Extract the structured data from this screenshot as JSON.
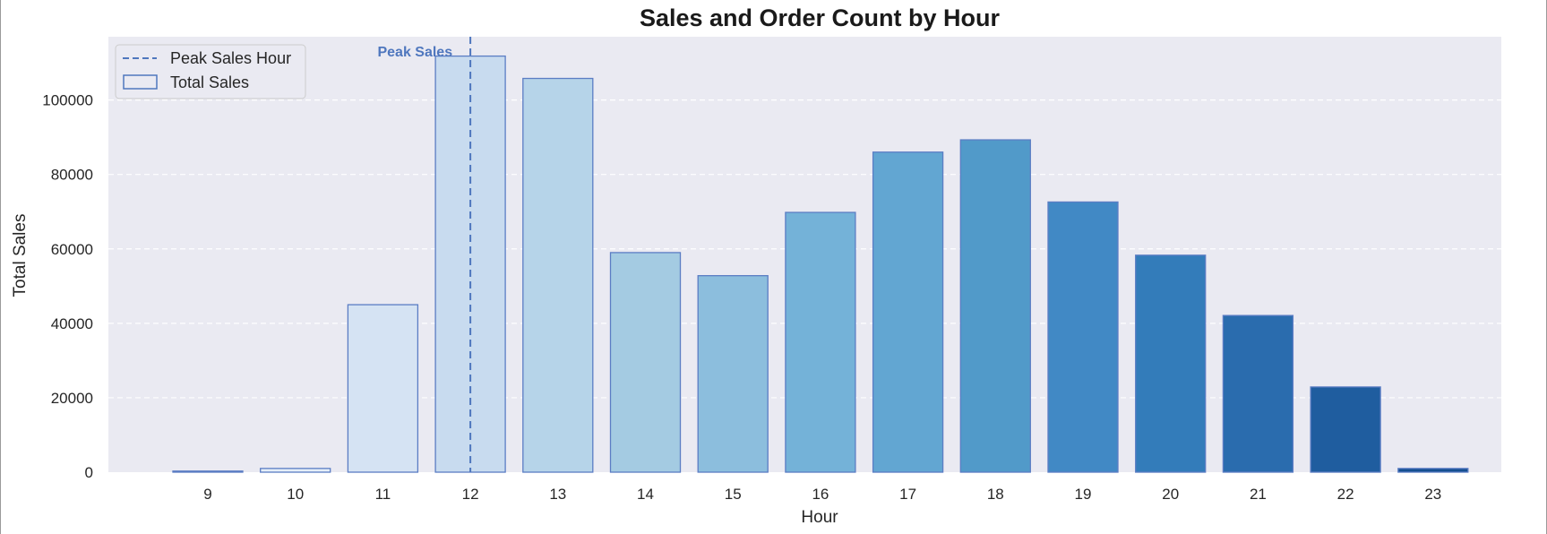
{
  "chart_data": {
    "type": "bar",
    "title": "Sales and Order Count by Hour",
    "xlabel": "Hour",
    "ylabel": "Total Sales",
    "categories": [
      "9",
      "10",
      "11",
      "12",
      "13",
      "14",
      "15",
      "16",
      "17",
      "18",
      "19",
      "20",
      "21",
      "22",
      "23"
    ],
    "series": [
      {
        "name": "Total Sales",
        "values": [
          300,
          1000,
          45000,
          111800,
          105800,
          59000,
          52800,
          69800,
          86000,
          89300,
          72600,
          58300,
          42100,
          22900,
          1000
        ],
        "colors": [
          "#f1f6fc",
          "#e4eef8",
          "#d5e3f3",
          "#c8dbef",
          "#b6d4e9",
          "#a4cbe2",
          "#8cbedd",
          "#74b2d8",
          "#62a6d2",
          "#519ac9",
          "#4189c5",
          "#337cba",
          "#2a6cae",
          "#1f5d9f",
          "#154f91"
        ],
        "edge_color": "#5b7dc4"
      }
    ],
    "yticks": [
      "0",
      "20000",
      "40000",
      "60000",
      "80000",
      "100000"
    ],
    "ylim": [
      0,
      117000
    ],
    "grid": "horizontal dashed",
    "background": "#eaeaf2",
    "peak_line": {
      "category": "12",
      "label": "Peak Sales",
      "legend_label": "Peak Sales Hour",
      "color": "#4f77be"
    },
    "legend": {
      "placement": "top-left",
      "entries": [
        "Peak Sales Hour",
        "Total Sales"
      ]
    }
  }
}
